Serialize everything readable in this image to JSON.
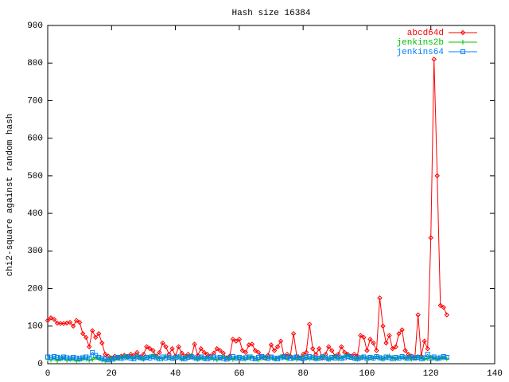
{
  "chart_data": {
    "type": "line",
    "title": "Hash size 16384",
    "y_label": "chi2-square against random hash",
    "x": [
      0,
      1,
      2,
      3,
      4,
      5,
      6,
      7,
      8,
      9,
      10,
      11,
      12,
      13,
      14,
      15,
      16,
      17,
      18,
      19,
      20,
      21,
      22,
      23,
      24,
      25,
      26,
      27,
      28,
      29,
      30,
      31,
      32,
      33,
      34,
      35,
      36,
      37,
      38,
      39,
      40,
      41,
      42,
      43,
      44,
      45,
      46,
      47,
      48,
      49,
      50,
      51,
      52,
      53,
      54,
      55,
      56,
      57,
      58,
      59,
      60,
      61,
      62,
      63,
      64,
      65,
      66,
      67,
      68,
      69,
      70,
      71,
      72,
      73,
      74,
      75,
      76,
      77,
      78,
      79,
      80,
      81,
      82,
      83,
      84,
      85,
      86,
      87,
      88,
      89,
      90,
      91,
      92,
      93,
      94,
      95,
      96,
      97,
      98,
      99,
      100,
      101,
      102,
      103,
      104,
      105,
      106,
      107,
      108,
      109,
      110,
      111,
      112,
      113,
      114,
      115,
      116,
      117,
      118,
      119,
      120,
      121,
      122,
      123,
      124,
      125
    ],
    "series": [
      {
        "name": "abcd64d",
        "color": "#ff0000",
        "point": "diamond",
        "values": [
          115,
          122,
          118,
          108,
          107,
          107,
          108,
          110,
          100,
          115,
          110,
          80,
          70,
          45,
          88,
          70,
          80,
          55,
          25,
          20,
          15,
          20,
          15,
          20,
          22,
          18,
          25,
          22,
          30,
          18,
          25,
          45,
          40,
          35,
          20,
          30,
          55,
          45,
          25,
          40,
          20,
          45,
          28,
          20,
          25,
          18,
          52,
          22,
          40,
          30,
          25,
          20,
          28,
          40,
          35,
          28,
          15,
          20,
          65,
          60,
          65,
          35,
          30,
          50,
          52,
          35,
          30,
          20,
          15,
          22,
          50,
          35,
          45,
          60,
          20,
          25,
          20,
          80,
          20,
          15,
          25,
          30,
          105,
          40,
          25,
          40,
          15,
          25,
          45,
          35,
          20,
          25,
          45,
          30,
          25,
          20,
          25,
          20,
          75,
          70,
          35,
          65,
          55,
          35,
          175,
          100,
          55,
          75,
          40,
          45,
          80,
          90,
          35,
          25,
          20,
          15,
          130,
          20,
          60,
          40,
          335,
          810,
          500,
          155,
          150,
          130
        ]
      },
      {
        "name": "jenkins2b",
        "color": "#00c000",
        "point": "plus",
        "values": [
          12,
          10,
          14,
          8,
          12,
          15,
          9,
          11,
          13,
          7,
          10,
          14,
          12,
          9,
          11,
          16,
          13,
          10,
          8,
          12,
          15,
          11,
          14,
          17,
          19,
          16,
          18,
          14,
          20,
          15,
          12,
          17,
          19,
          22,
          18,
          15,
          13,
          20,
          17,
          14,
          16,
          19,
          12,
          15,
          18,
          21,
          14,
          11,
          16,
          13,
          17,
          15,
          12,
          10,
          14,
          18,
          16,
          13,
          11,
          15,
          17,
          14,
          12,
          16,
          19,
          13,
          10,
          15,
          18,
          14,
          17,
          12,
          15,
          19,
          16,
          13,
          20,
          14,
          11,
          16,
          18,
          15,
          13,
          17,
          12,
          14,
          19,
          16,
          11,
          15,
          18,
          13,
          16,
          20,
          22,
          17,
          14,
          12,
          15,
          18,
          13,
          16,
          14,
          19,
          15,
          12,
          17,
          20,
          16,
          13,
          15,
          18,
          14,
          17,
          12,
          16,
          19,
          15,
          13,
          14,
          17,
          15,
          12,
          14,
          16,
          13
        ]
      },
      {
        "name": "jenkins64",
        "color": "#0080ff",
        "point": "square",
        "values": [
          18,
          16,
          19,
          17,
          15,
          18,
          16,
          14,
          17,
          15,
          13,
          16,
          18,
          15,
          30,
          22,
          17,
          14,
          12,
          10,
          12,
          15,
          17,
          14,
          16,
          19,
          15,
          13,
          18,
          16,
          14,
          17,
          15,
          19,
          16,
          13,
          18,
          15,
          17,
          14,
          16,
          18,
          15,
          13,
          17,
          19,
          16,
          14,
          18,
          15,
          13,
          16,
          18,
          15,
          17,
          14,
          12,
          16,
          19,
          15,
          17,
          14,
          16,
          18,
          15,
          13,
          17,
          19,
          16,
          14,
          18,
          15,
          13,
          16,
          19,
          17,
          14,
          16,
          18,
          15,
          13,
          17,
          19,
          16,
          14,
          15,
          18,
          16,
          13,
          17,
          15,
          18,
          14,
          16,
          19,
          17,
          15,
          13,
          16,
          18,
          14,
          17,
          15,
          19,
          16,
          14,
          18,
          16,
          13,
          17,
          15,
          19,
          16,
          14,
          18,
          15,
          17,
          13,
          16,
          25,
          15,
          18,
          14,
          16,
          19,
          17
        ]
      }
    ],
    "xlim": [
      0,
      140
    ],
    "ylim": [
      0,
      900
    ],
    "xticks": [
      0,
      20,
      40,
      60,
      80,
      100,
      120,
      140
    ],
    "yticks": [
      0,
      100,
      200,
      300,
      400,
      500,
      600,
      700,
      800,
      900
    ],
    "legend": "top-right"
  }
}
